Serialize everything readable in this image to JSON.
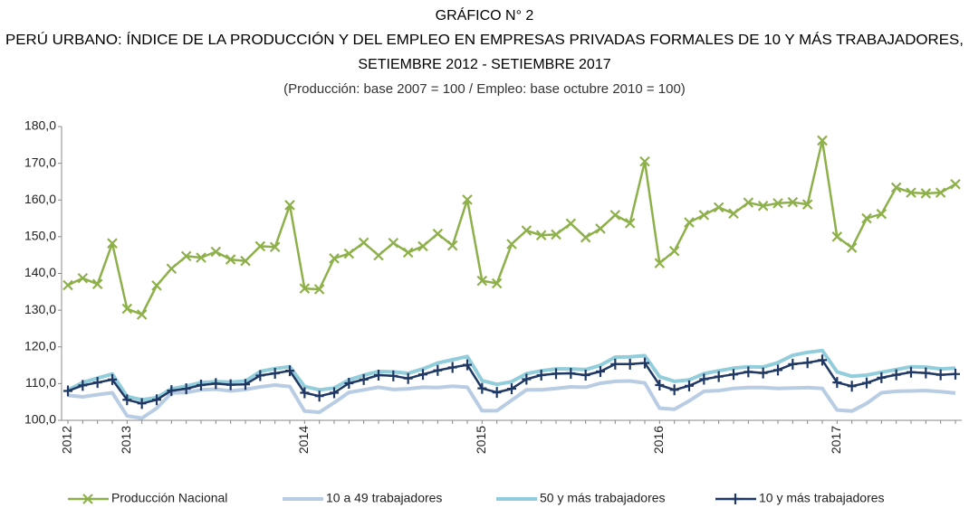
{
  "chart_data": {
    "type": "line",
    "title": [
      "GRÁFICO N° 2",
      "PERÚ URBANO: ÍNDICE DE LA PRODUCCIÓN Y DEL EMPLEO EN EMPRESAS PRIVADAS FORMALES DE 10 Y MÁS TRABAJADORES,",
      "SETIEMBRE 2012 - SETIEMBRE 2017"
    ],
    "subtitle": "(Producción: base 2007 = 100 / Empleo: base octubre 2010 = 100)",
    "categories": [
      "2012",
      null,
      null,
      null,
      "2013",
      null,
      null,
      null,
      null,
      null,
      null,
      null,
      null,
      null,
      null,
      null,
      "2014",
      null,
      null,
      null,
      null,
      null,
      null,
      null,
      null,
      null,
      null,
      null,
      "2015",
      null,
      null,
      null,
      null,
      null,
      null,
      null,
      null,
      null,
      null,
      null,
      "2016",
      null,
      null,
      null,
      null,
      null,
      null,
      null,
      null,
      null,
      null,
      null,
      "2017",
      null,
      null,
      null,
      null,
      null,
      null,
      null,
      null
    ],
    "ylim": [
      100,
      180
    ],
    "yticks": [
      {
        "value": 100,
        "label": "100,0"
      },
      {
        "value": 110,
        "label": "110,0"
      },
      {
        "value": 120,
        "label": "120,0"
      },
      {
        "value": 130,
        "label": "130,0"
      },
      {
        "value": 140,
        "label": "140,0"
      },
      {
        "value": 150,
        "label": "150,0"
      },
      {
        "value": 160,
        "label": "160,0"
      },
      {
        "value": 170,
        "label": "170,0"
      },
      {
        "value": 180,
        "label": "180,0"
      }
    ],
    "grid": false,
    "legend": "bottom",
    "series": [
      {
        "name": "Producción Nacional",
        "color": "#8db04a",
        "marker": "x",
        "values": [
          136.8,
          138.7,
          137.1,
          148.2,
          130.4,
          128.8,
          136.7,
          141.3,
          144.7,
          144.3,
          145.9,
          143.8,
          143.4,
          147.4,
          147.2,
          158.6,
          135.9,
          135.7,
          144.1,
          145.4,
          148.4,
          144.9,
          148.3,
          145.7,
          147.4,
          150.8,
          147.6,
          160.1,
          138.0,
          137.3,
          148.0,
          151.7,
          150.4,
          150.6,
          153.6,
          149.8,
          152.2,
          155.9,
          153.7,
          170.5,
          142.8,
          146.1,
          153.9,
          155.9,
          158.0,
          156.3,
          159.3,
          158.4,
          159.1,
          159.4,
          158.8,
          176.2,
          150.0,
          147.0,
          155.0,
          156.2,
          163.4,
          162.0,
          161.8,
          162.0,
          164.3
        ]
      },
      {
        "name": "10 a 49 trabajadores",
        "color": "#b8cce4",
        "marker": "none",
        "values": [
          106.8,
          106.4,
          107.0,
          107.5,
          101.2,
          100.6,
          103.3,
          107.4,
          107.6,
          108.3,
          108.5,
          108.0,
          108.4,
          109.1,
          109.6,
          109.2,
          102.5,
          102.2,
          104.8,
          107.6,
          108.3,
          109.0,
          108.4,
          108.6,
          109.0,
          108.9,
          109.3,
          109.0,
          102.6,
          102.6,
          105.5,
          108.3,
          108.3,
          108.7,
          109.1,
          109.0,
          110.1,
          110.6,
          110.7,
          110.2,
          103.3,
          103.0,
          105.3,
          107.9,
          108.1,
          108.7,
          108.9,
          108.9,
          108.7,
          108.8,
          108.9,
          108.7,
          102.8,
          102.5,
          104.6,
          107.5,
          107.9,
          108.0,
          108.1,
          107.8,
          107.4
        ]
      },
      {
        "name": "50 y más trabajadores",
        "color": "#92cddc",
        "marker": "none",
        "values": [
          108.2,
          110.3,
          111.5,
          112.6,
          106.5,
          105.6,
          106.2,
          108.6,
          109.3,
          110.3,
          110.5,
          110.4,
          110.7,
          113.3,
          114.1,
          114.6,
          109.2,
          108.3,
          108.8,
          111.0,
          112.3,
          113.3,
          113.2,
          112.8,
          114.0,
          115.6,
          116.5,
          117.4,
          110.8,
          109.8,
          110.5,
          112.7,
          113.5,
          114.0,
          114.0,
          113.8,
          115.0,
          117.2,
          117.3,
          117.6,
          111.9,
          110.6,
          111.0,
          112.7,
          113.5,
          114.2,
          114.6,
          114.5,
          115.7,
          117.7,
          118.5,
          119.0,
          113.2,
          112.0,
          112.3,
          113.1,
          113.8,
          114.6,
          114.5,
          114.0,
          114.2
        ]
      },
      {
        "name": "10 y más trabajadores",
        "color": "#1f3864",
        "marker": "+",
        "values": [
          108.0,
          109.5,
          110.3,
          111.1,
          105.6,
          104.6,
          105.6,
          108.1,
          108.6,
          109.6,
          110.0,
          109.7,
          109.8,
          112.2,
          112.8,
          113.5,
          107.5,
          106.6,
          107.5,
          110.1,
          111.1,
          112.3,
          112.1,
          111.4,
          112.5,
          113.6,
          114.4,
          115.1,
          108.7,
          107.6,
          108.6,
          111.2,
          112.3,
          112.7,
          112.8,
          112.3,
          113.3,
          115.3,
          115.3,
          115.6,
          109.6,
          108.3,
          109.4,
          111.2,
          111.9,
          112.5,
          113.2,
          112.9,
          113.7,
          115.3,
          115.7,
          116.4,
          110.3,
          109.3,
          110.2,
          111.6,
          112.4,
          113.1,
          112.9,
          112.4,
          112.6
        ]
      }
    ]
  }
}
